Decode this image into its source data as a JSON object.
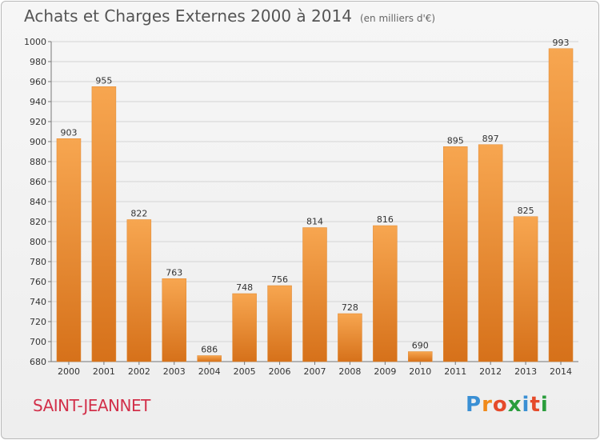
{
  "chart_data": {
    "type": "bar",
    "title": "Achats et Charges Externes 2000 à 2014",
    "subtitle": "(en milliers d'€)",
    "categories": [
      "2000",
      "2001",
      "2002",
      "2003",
      "2004",
      "2005",
      "2006",
      "2007",
      "2008",
      "2009",
      "2010",
      "2011",
      "2012",
      "2013",
      "2014"
    ],
    "values": [
      903,
      955,
      822,
      763,
      686,
      748,
      756,
      814,
      728,
      816,
      690,
      895,
      897,
      825,
      993
    ],
    "ylim": [
      680,
      1000
    ],
    "yticks": [
      680,
      700,
      720,
      740,
      760,
      780,
      800,
      820,
      840,
      860,
      880,
      900,
      920,
      940,
      960,
      980,
      1000
    ],
    "grid": true,
    "bar_color": "#f0953a"
  },
  "commune": "SAINT-JEANNET",
  "logo": {
    "text": "Proxiti",
    "letter_colors": [
      "#3a8fd4",
      "#f08a1a",
      "#e54a2a",
      "#2a9d3c",
      "#3a8fd4",
      "#e54a2a",
      "#2a9d3c"
    ]
  }
}
